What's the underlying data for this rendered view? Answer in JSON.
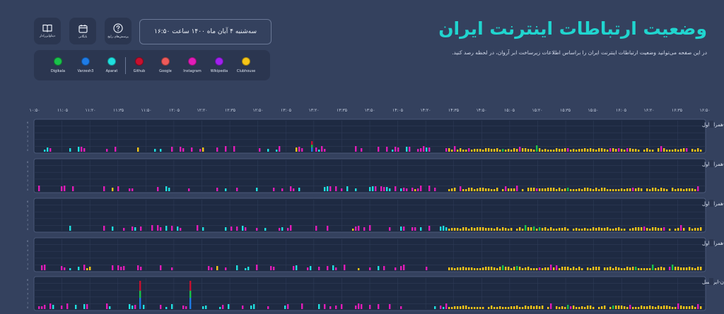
{
  "header": {
    "title": "وضعیت ارتباطات اینترنت ایران",
    "subtitle": "در این صفحه می‌توانید وضعیت ارتباطات اینترنت ایران را براساس اطلاعات زیرساخت ابر آروان، در لحظه رصد کنید.",
    "date_text": "سه‌شنبه ۴ آبان ماه ۱۴۰۰ ساعت ۱۶:۵۰"
  },
  "toolbar": [
    {
      "label": "دیتاوایر‌رادار",
      "icon": "book-icon"
    },
    {
      "label": "بایگانی",
      "icon": "calendar-icon"
    },
    {
      "label": "پرسش‌های رایج",
      "icon": "question-icon"
    }
  ],
  "legend": [
    {
      "name": "Digikala",
      "color": "#19c24a"
    },
    {
      "name": "Varzesh3",
      "color": "#1e7be6"
    },
    {
      "name": "Aparat",
      "color": "#1fe0e0"
    },
    {
      "name": "Github",
      "color": "#c8102e"
    },
    {
      "name": "Google",
      "color": "#ee5a5a"
    },
    {
      "name": "Instagram",
      "color": "#e21cb8"
    },
    {
      "name": "Wikipedia",
      "color": "#a020f0"
    },
    {
      "name": "Clubhouse",
      "color": "#f5c518"
    }
  ],
  "timeline": [
    "۱۰:۵۰",
    "۱۱:۰۵",
    "۱۱:۲۰",
    "۱۱:۳۵",
    "۱۱:۵۰",
    "۱۲:۰۵",
    "۱۲:۲۰",
    "۱۲:۳۵",
    "۱۲:۵۰",
    "۱۳:۰۵",
    "۱۳:۲۰",
    "۱۳:۳۵",
    "۱۳:۵۰",
    "۱۴:۰۵",
    "۱۴:۲۰",
    "۱۴:۳۵",
    "۱۴:۵۰",
    "۱۵:۰۵",
    "۱۵:۲۰",
    "۱۵:۳۵",
    "۱۵:۵۰",
    "۱۶:۰۵",
    "۱۶:۲۰",
    "۱۶:۳۵",
    "۱۶:۵۰"
  ],
  "panels": [
    {
      "name": "تهران-همراه اول",
      "seed": 11,
      "spikes": [
        [
          440,
          3,
          "#c8102e"
        ]
      ]
    },
    {
      "name": "تبریز-همراه اول",
      "seed": 23,
      "spikes": []
    },
    {
      "name": "مشهد-همراه اول",
      "seed": 37,
      "spikes": []
    },
    {
      "name": "اصفهان-همراه اول",
      "seed": 53,
      "spikes": []
    },
    {
      "name": "تهران-ایرانسل",
      "seed": 71,
      "spikes": [
        [
          197,
          8,
          "#c8102e"
        ],
        [
          268,
          8,
          "#c8102e"
        ]
      ]
    }
  ]
}
